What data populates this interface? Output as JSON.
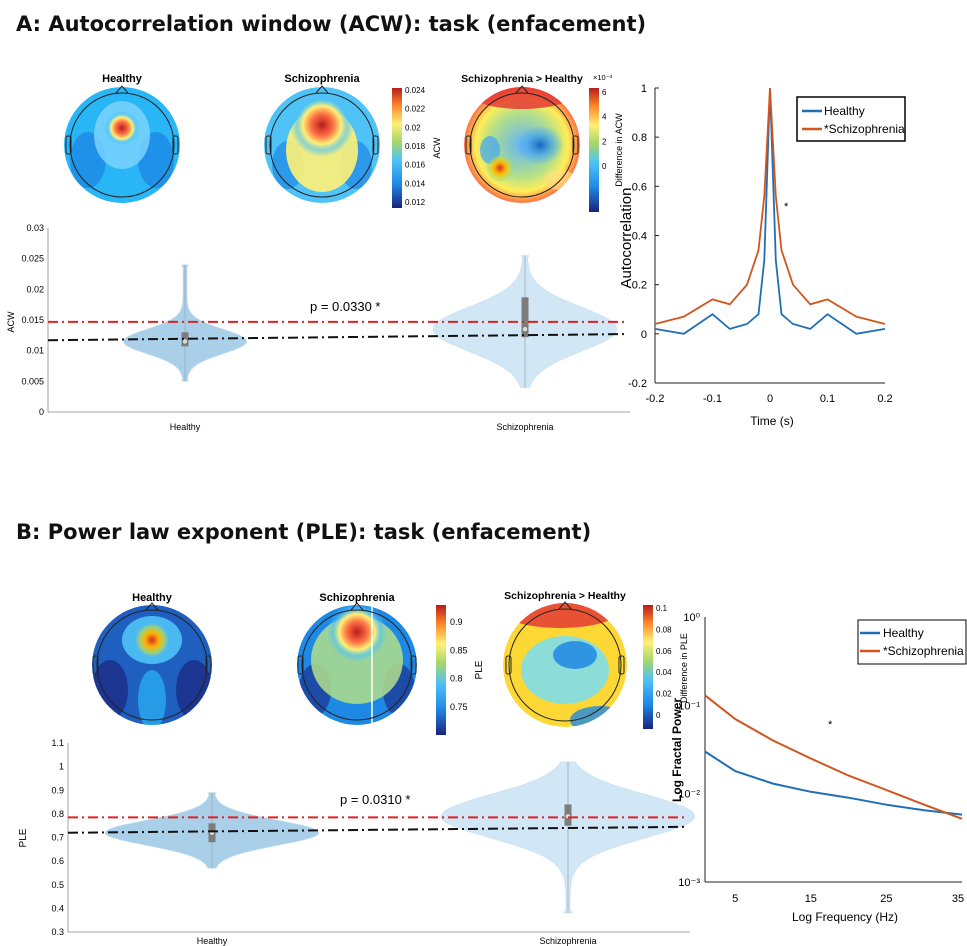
{
  "panels": [
    {
      "title": "A: Autocorrelation window (ACW): task (enfacement)",
      "topomaps": {
        "titles": [
          "Healthy",
          "Schizophrenia",
          "Schizophrenia > Healthy"
        ],
        "colorbar_value": {
          "label": "ACW",
          "ticks": [
            "0.024",
            "0.022",
            "0.02",
            "0.018",
            "0.016",
            "0.014",
            "0.012"
          ]
        },
        "colorbar_diff": {
          "label": "Difference in ACW",
          "exponent": "×10⁻³",
          "ticks": [
            "6",
            "4",
            "2",
            "0"
          ]
        }
      },
      "violin": {
        "ylabel": "ACW",
        "yticks": [
          "0.03",
          "0.025",
          "0.02",
          "0.015",
          "0.01",
          "0.005",
          "0"
        ],
        "groups": [
          "Healthy",
          "Schizophrenia"
        ],
        "pvalue": "p = 0.0330 *"
      },
      "curve": {
        "ylabel": "Autocorrelation",
        "xlabel": "Time (s)",
        "yticks": [
          "1",
          "0.8",
          "0.6",
          "0.4",
          "0.2",
          "0",
          "-0.2"
        ],
        "xticks": [
          "-0.2",
          "-0.1",
          "0",
          "0.1",
          "0.2"
        ],
        "legend": [
          "Healthy",
          "*Schizophrenia"
        ],
        "star": "*"
      }
    },
    {
      "title": "B: Power law exponent (PLE): task (enfacement)",
      "topomaps": {
        "titles": [
          "Healthy",
          "Schizophrenia",
          "Schizophrenia > Healthy"
        ],
        "colorbar_value": {
          "label": "PLE",
          "ticks": [
            "0.9",
            "0.85",
            "0.8",
            "0.75"
          ]
        },
        "colorbar_diff": {
          "label": "Difference in PLE",
          "ticks": [
            "0.1",
            "0.08",
            "0.06",
            "0.04",
            "0.02",
            "0"
          ]
        }
      },
      "violin": {
        "ylabel": "PLE",
        "yticks": [
          "1.1",
          "1",
          "0.9",
          "0.8",
          "0.7",
          "0.6",
          "0.5",
          "0.4",
          "0.3"
        ],
        "groups": [
          "Healthy",
          "Schizophrenia"
        ],
        "pvalue": "p = 0.0310 *"
      },
      "curve": {
        "ylabel": "Log Fractal Power",
        "xlabel": "Log Frequency (Hz)",
        "yticks": [
          "10⁰",
          "10⁻¹",
          "10⁻²",
          "10⁻³"
        ],
        "xticks": [
          "5",
          "15",
          "25",
          "35"
        ],
        "legend": [
          "Healthy",
          "*Schizophrenia"
        ],
        "star": "*"
      }
    }
  ],
  "colors": {
    "healthy": "#1f6fb4",
    "schizophrenia": "#d2551f",
    "violin_healthy": "#9cc8e6",
    "violin_schizo": "#c9e3f4",
    "ref_red": "#e02020",
    "ref_black": "#111111"
  },
  "chart_data": [
    {
      "type": "violin",
      "title": "",
      "ylabel": "ACW",
      "ylim": [
        0,
        0.03
      ],
      "categories": [
        "Healthy",
        "Schizophrenia"
      ],
      "medians": [
        0.0115,
        0.0135
      ],
      "quartiles": [
        [
          0.0107,
          0.013
        ],
        [
          0.0122,
          0.0187
        ]
      ],
      "ranges": [
        [
          0.005,
          0.024
        ],
        [
          0.004,
          0.0255
        ]
      ],
      "reference_lines": [
        {
          "color": "red",
          "style": "dash-dot",
          "y": 0.0147
        },
        {
          "color": "black",
          "style": "dash-dot",
          "y_start": 0.0117,
          "y_end": 0.0127
        }
      ],
      "annotation": "p = 0.0330 *"
    },
    {
      "type": "line",
      "xlabel": "Time (s)",
      "ylabel": "Autocorrelation",
      "xlim": [
        -0.2,
        0.2
      ],
      "ylim": [
        -0.2,
        1
      ],
      "series": [
        {
          "name": "Healthy",
          "x": [
            -0.2,
            -0.15,
            -0.1,
            -0.07,
            -0.04,
            -0.02,
            -0.01,
            0,
            0.01,
            0.02,
            0.04,
            0.07,
            0.1,
            0.15,
            0.2
          ],
          "y": [
            0.02,
            0.0,
            0.08,
            0.02,
            0.04,
            0.08,
            0.3,
            1.0,
            0.3,
            0.08,
            0.04,
            0.02,
            0.08,
            0.0,
            0.02
          ]
        },
        {
          "name": "*Schizophrenia",
          "x": [
            -0.2,
            -0.15,
            -0.1,
            -0.07,
            -0.04,
            -0.02,
            -0.01,
            0,
            0.01,
            0.02,
            0.04,
            0.07,
            0.1,
            0.15,
            0.2
          ],
          "y": [
            0.04,
            0.07,
            0.14,
            0.12,
            0.2,
            0.34,
            0.56,
            1.0,
            0.56,
            0.34,
            0.2,
            0.12,
            0.14,
            0.07,
            0.04
          ]
        }
      ]
    },
    {
      "type": "violin",
      "title": "",
      "ylabel": "PLE",
      "ylim": [
        0.3,
        1.1
      ],
      "categories": [
        "Healthy",
        "Schizophrenia"
      ],
      "medians": [
        0.72,
        0.79
      ],
      "quartiles": [
        [
          0.68,
          0.76
        ],
        [
          0.75,
          0.84
        ]
      ],
      "ranges": [
        [
          0.57,
          0.89
        ],
        [
          0.38,
          1.02
        ]
      ],
      "reference_lines": [
        {
          "color": "red",
          "style": "dash-dot",
          "y": 0.785
        },
        {
          "color": "black",
          "style": "dash-dot",
          "y_start": 0.72,
          "y_end": 0.745
        }
      ],
      "annotation": "p = 0.0310 *"
    },
    {
      "type": "line",
      "xlabel": "Log Frequency (Hz)",
      "ylabel": "Log Fractal Power",
      "log_y": true,
      "ylim": [
        0.001,
        1
      ],
      "series": [
        {
          "name": "Healthy",
          "x": [
            1,
            5,
            10,
            15,
            20,
            25,
            30,
            35
          ],
          "y": [
            0.03,
            0.018,
            0.013,
            0.0105,
            0.009,
            0.0075,
            0.0065,
            0.0058
          ]
        },
        {
          "name": "*Schizophrenia",
          "x": [
            1,
            5,
            10,
            15,
            20,
            25,
            30,
            35
          ],
          "y": [
            0.13,
            0.07,
            0.04,
            0.025,
            0.016,
            0.011,
            0.0075,
            0.0052
          ]
        }
      ]
    }
  ]
}
